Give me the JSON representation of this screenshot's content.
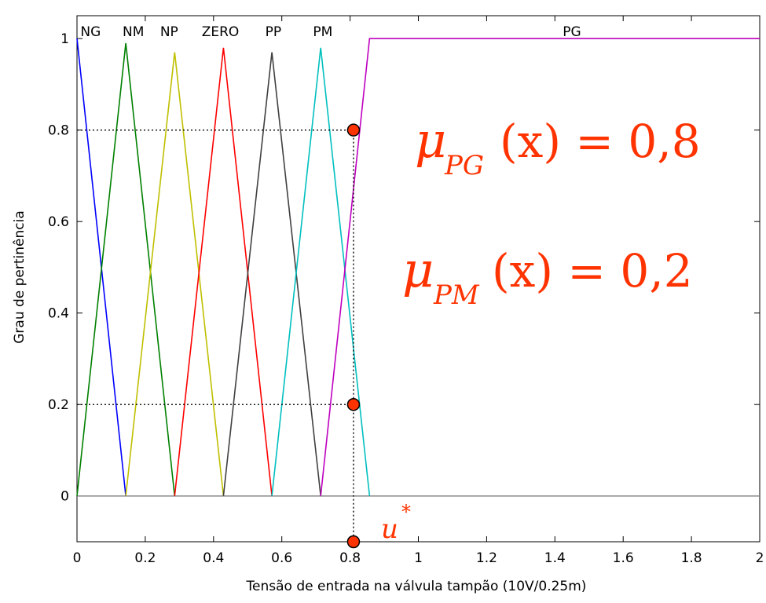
{
  "chart_data": {
    "type": "line",
    "xlabel": "Tensão de entrada na válvula tampão (10V/0.25m)",
    "ylabel": "Grau de pertinência",
    "xlim": [
      0,
      2
    ],
    "ylim": [
      -0.1,
      1.05
    ],
    "x_ticks": [
      "0",
      "0.2",
      "0.4",
      "0.6",
      "0.8",
      "1",
      "1.2",
      "1.4",
      "1.6",
      "1.8",
      "2"
    ],
    "y_ticks": [
      "0",
      "0.2",
      "0.4",
      "0.6",
      "0.8",
      "1"
    ],
    "grid": false,
    "series": [
      {
        "name": "NG",
        "color": "#0000ff",
        "x": [
          0,
          0.143
        ],
        "y": [
          1,
          0
        ]
      },
      {
        "name": "NM",
        "color": "#008000",
        "x": [
          0,
          0.143,
          0.286
        ],
        "y": [
          0,
          0.99,
          0
        ]
      },
      {
        "name": "NP",
        "color": "#bfbf00",
        "x": [
          0.143,
          0.286,
          0.429
        ],
        "y": [
          0,
          0.97,
          0
        ]
      },
      {
        "name": "ZERO",
        "color": "#ff0000",
        "x": [
          0.286,
          0.429,
          0.571
        ],
        "y": [
          0,
          0.98,
          0
        ]
      },
      {
        "name": "PP",
        "color": "#404040",
        "x": [
          0.429,
          0.571,
          0.714
        ],
        "y": [
          0,
          0.97,
          0
        ]
      },
      {
        "name": "PM",
        "color": "#00bfbf",
        "x": [
          0.571,
          0.714,
          0.857
        ],
        "y": [
          0,
          0.98,
          0
        ]
      },
      {
        "name": "PG",
        "color": "#bf00bf",
        "x": [
          0.714,
          0.857,
          2
        ],
        "y": [
          0,
          1,
          1
        ]
      }
    ],
    "baseline": {
      "y": 0,
      "color": "#808080"
    },
    "annotations": {
      "u_star_x": 0.81,
      "points": [
        {
          "x": 0.81,
          "y": 0.8
        },
        {
          "x": 0.81,
          "y": 0.2
        },
        {
          "x": 0.81,
          "y": -0.1
        }
      ],
      "point_color": "#ff3300",
      "u_label": "u",
      "u_sup": "*",
      "formula1": {
        "mu": "μ",
        "sub": "PG",
        "rest": "(x) = 0,8"
      },
      "formula2": {
        "mu": "μ",
        "sub": "PM",
        "rest": "(x) = 0,2"
      }
    }
  }
}
